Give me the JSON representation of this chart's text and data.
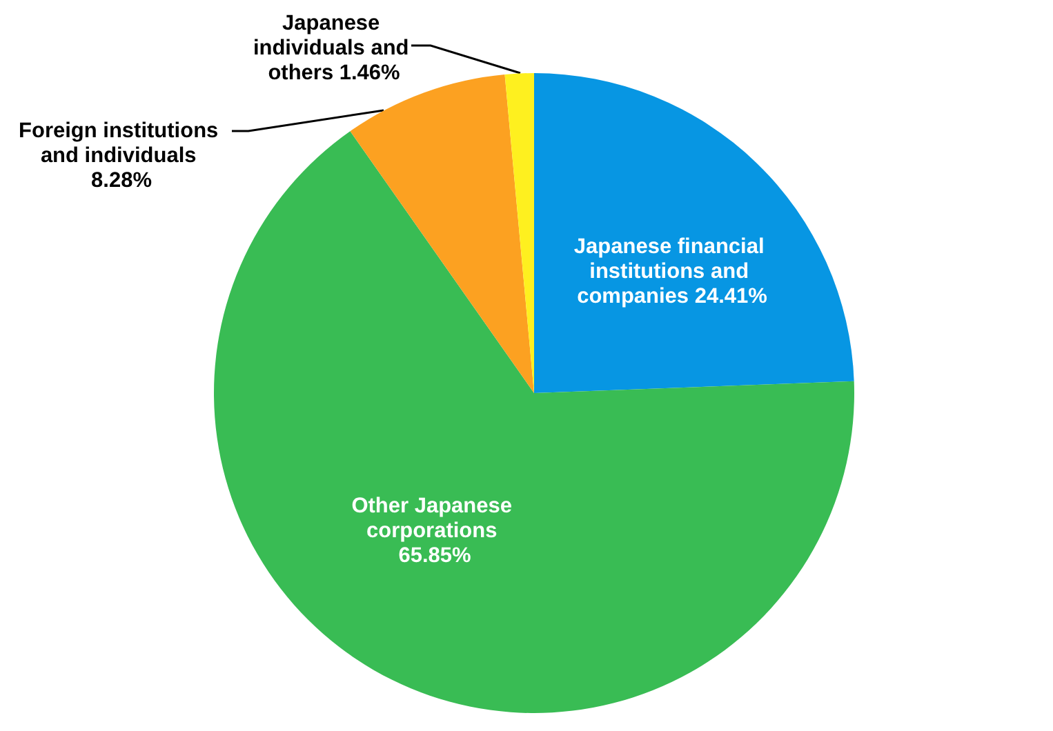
{
  "chart_data": {
    "type": "pie",
    "categories": [
      "Japanese financial institutions and companies",
      "Other Japanese corporations",
      "Foreign institutions and individuals",
      "Japanese individuals and others"
    ],
    "values": [
      24.41,
      65.85,
      8.28,
      1.46
    ],
    "value_labels": [
      "24.41%",
      "65.85%",
      "8.28%",
      "1.46%"
    ],
    "colors": [
      "#0796e3",
      "#39bc54",
      "#fca121",
      "#fef01f"
    ],
    "legend": false
  }
}
